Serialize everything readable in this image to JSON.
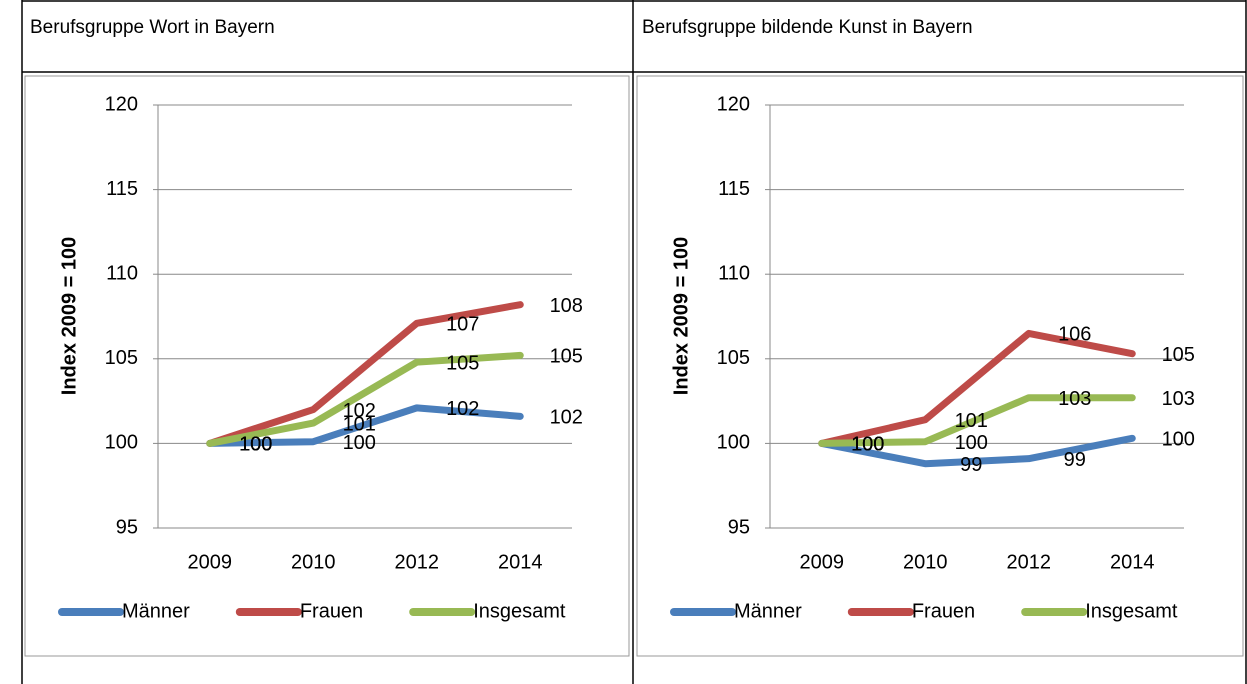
{
  "chart_data": [
    {
      "type": "line",
      "title": "Berufsgruppe Wort in Bayern",
      "y_label": "Index 2009 = 100",
      "categories": [
        "2009",
        "2010",
        "2012",
        "2014"
      ],
      "ylim": [
        95,
        120
      ],
      "yticks": [
        95,
        100,
        105,
        110,
        115,
        120
      ],
      "grid": true,
      "series": [
        {
          "name": "Männer",
          "color": "#4a7ebb",
          "values": [
            100,
            100.1,
            102.1,
            101.6
          ],
          "value_labels": [
            "100",
            "100",
            "102",
            "102"
          ]
        },
        {
          "name": "Frauen",
          "color": "#be4b48",
          "values": [
            100,
            102.0,
            107.1,
            108.2
          ],
          "value_labels": [
            "100",
            "102",
            "107",
            "108"
          ]
        },
        {
          "name": "Insgesamt",
          "color": "#98b954",
          "values": [
            100,
            101.2,
            104.8,
            105.2
          ],
          "value_labels": [
            "100",
            "101",
            "105",
            "105"
          ]
        }
      ]
    },
    {
      "type": "line",
      "title": "Berufsgruppe bildende Kunst in Bayern",
      "y_label": "Index 2009 = 100",
      "categories": [
        "2009",
        "2010",
        "2012",
        "2014"
      ],
      "ylim": [
        95,
        120
      ],
      "yticks": [
        95,
        100,
        105,
        110,
        115,
        120
      ],
      "grid": true,
      "series": [
        {
          "name": "Männer",
          "color": "#4a7ebb",
          "values": [
            100,
            98.8,
            99.1,
            100.3
          ],
          "value_labels": [
            "100",
            "99",
            "99",
            "100"
          ]
        },
        {
          "name": "Frauen",
          "color": "#be4b48",
          "values": [
            100,
            101.4,
            106.5,
            105.3
          ],
          "value_labels": [
            "100",
            "101",
            "106",
            "105"
          ]
        },
        {
          "name": "Insgesamt",
          "color": "#98b954",
          "values": [
            100,
            100.1,
            102.7,
            102.7
          ],
          "value_labels": [
            "100",
            "100",
            "103",
            "103"
          ]
        }
      ]
    }
  ]
}
